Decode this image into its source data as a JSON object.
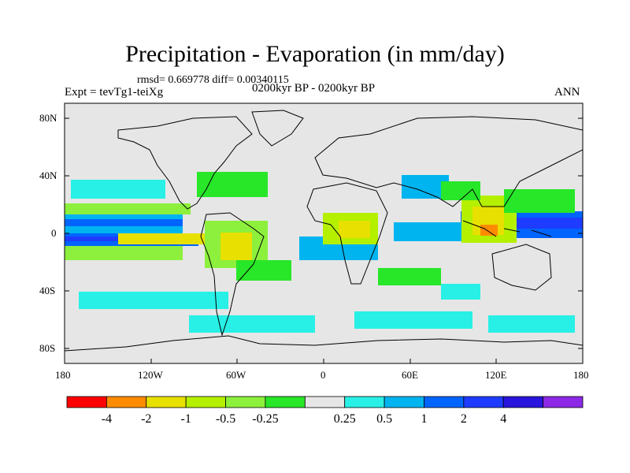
{
  "title": "Precipitation - Evaporation (in mm/day)",
  "stats": "rmsd= 0.669778 diff= 0.00340115",
  "period": "0200kyr BP - 0200kyr BP",
  "experiment": "Expt = tevTg1-teiXg",
  "season": "ANN",
  "map": {
    "lat_ticks": [
      "80N",
      "40N",
      "0",
      "40S",
      "80S"
    ],
    "lon_ticks": [
      "180",
      "120W",
      "60W",
      "0",
      "60E",
      "120E",
      "180"
    ]
  },
  "colorbar": {
    "colors": [
      "#ff0000",
      "#ff8c00",
      "#e8e000",
      "#b4f000",
      "#8cf03c",
      "#28e628",
      "#e6e6e6",
      "#28f0e6",
      "#00b4f0",
      "#0064ff",
      "#1e3cff",
      "#2814dc",
      "#8c28e6"
    ],
    "labels": [
      "-4",
      "-2",
      "-1",
      "-0.5",
      "-0.25",
      "0.25",
      "0.5",
      "1",
      "2",
      "4"
    ]
  },
  "background_color": "#e6e6e6"
}
